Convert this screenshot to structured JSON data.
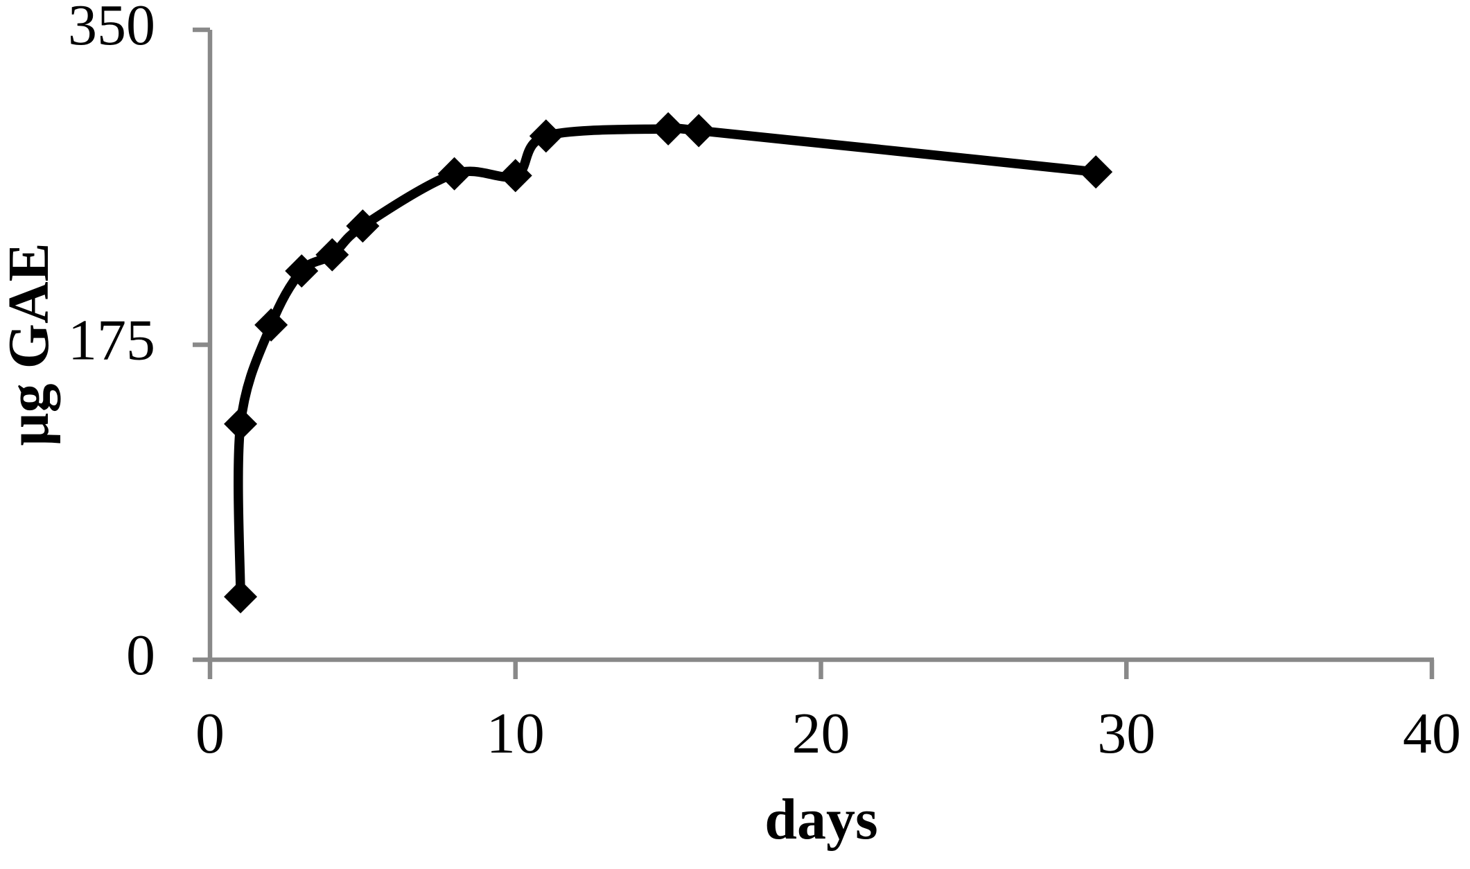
{
  "figure": {
    "background": "#ffffff"
  },
  "chart_data": {
    "type": "line",
    "title": "",
    "xlabel": "days",
    "ylabel": "µg GAE",
    "x": [
      1,
      1,
      2,
      3,
      4,
      5,
      8,
      10,
      11,
      15,
      16,
      29
    ],
    "y": [
      35,
      131,
      186,
      216,
      225,
      241,
      270,
      269,
      291,
      295,
      294,
      271
    ],
    "xlim": [
      0,
      40
    ],
    "ylim": [
      0,
      350
    ],
    "x_ticks": [
      0,
      10,
      20,
      30,
      40
    ],
    "y_ticks": [
      0,
      175,
      350
    ],
    "grid": false,
    "legend": false,
    "marker": "diamond",
    "smooth": true,
    "line_color": "#000000",
    "marker_color": "#000000",
    "axis_color": "#898989",
    "text_color": "#000000"
  }
}
